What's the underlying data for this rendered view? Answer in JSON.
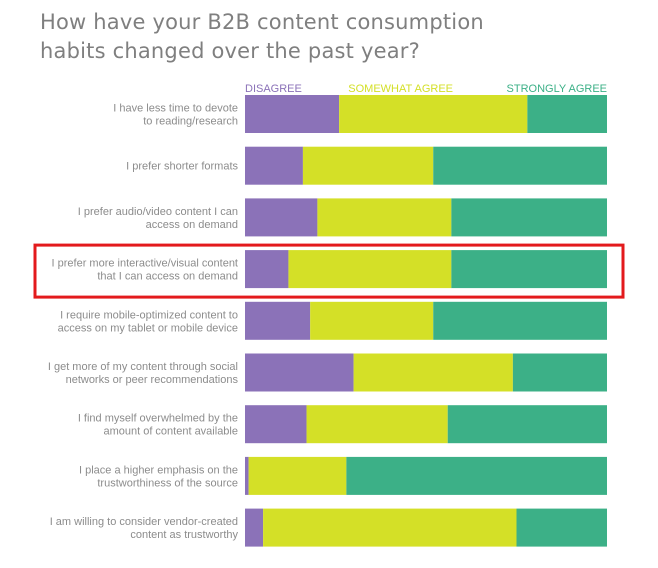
{
  "title_lines": [
    "How have your B2B content consumption",
    "habits changed over the past year?"
  ],
  "colors": {
    "disagree": "#8b72b8",
    "somewhat_agree": "#d4e027",
    "strongly_agree": "#3cb087",
    "highlight": "#e31a1c",
    "title": "#7f7f7f",
    "label": "#8c8c8c"
  },
  "highlighted_row": 3,
  "chart_data": {
    "type": "bar",
    "orientation": "horizontal",
    "stacked": true,
    "legend_position": "top",
    "xlim": [
      0,
      100
    ],
    "grid": false,
    "categories": [
      [
        "I have less time to devote",
        "to reading/research"
      ],
      [
        "I prefer shorter formats"
      ],
      [
        "I prefer audio/video content I can",
        "access on demand"
      ],
      [
        "I prefer more interactive/visual content",
        "that I can access on demand"
      ],
      [
        "I require mobile-optimized content to",
        "access on my tablet or mobile device"
      ],
      [
        "I get more of my content through social",
        "networks or peer recommendations"
      ],
      [
        "I find myself overwhelmed by the",
        "amount of content available"
      ],
      [
        "I place a higher emphasis on the",
        "trustworthiness of the source"
      ],
      [
        "I am willing to consider vendor-created",
        "content as trustworthy"
      ]
    ],
    "series": [
      {
        "name": "DISAGREE",
        "key": "disagree",
        "values": [
          26,
          16,
          20,
          12,
          18,
          30,
          17,
          1,
          5
        ]
      },
      {
        "name": "SOMEWHAT AGREE",
        "key": "somewhat_agree",
        "values": [
          52,
          36,
          37,
          45,
          34,
          44,
          39,
          27,
          70
        ]
      },
      {
        "name": "STRONGLY AGREE",
        "key": "strongly_agree",
        "values": [
          22,
          48,
          43,
          43,
          48,
          26,
          44,
          72,
          25
        ]
      }
    ]
  }
}
